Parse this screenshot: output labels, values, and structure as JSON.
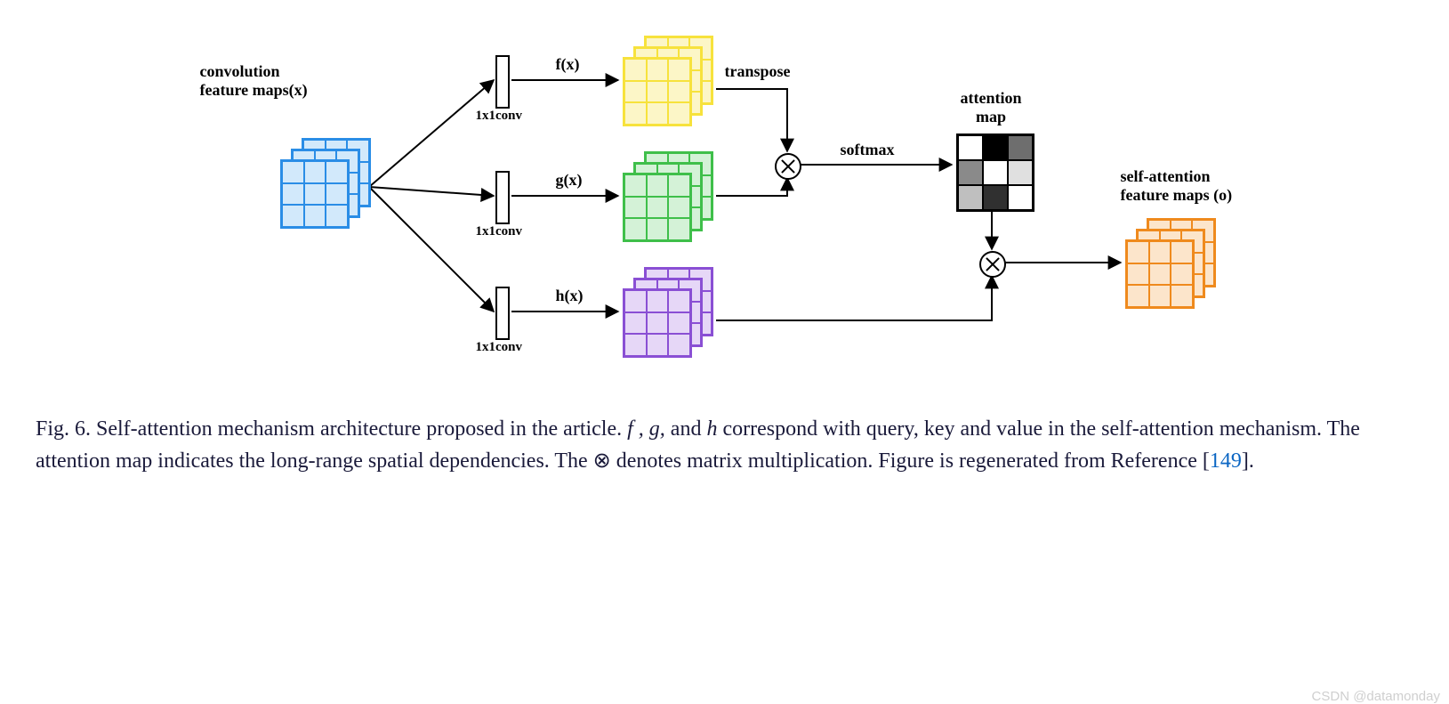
{
  "diagram": {
    "type": "flowchart",
    "input_label": "convolution\nfeature maps(x)",
    "branches": [
      {
        "name": "f",
        "func_label": "f(x)",
        "conv_label": "1x1conv",
        "stack_color": "#f7e23c",
        "stack_fill": "#fcf6c7",
        "extra_label": "transpose"
      },
      {
        "name": "g",
        "func_label": "g(x)",
        "conv_label": "1x1conv",
        "stack_color": "#3fbf4a",
        "stack_fill": "#d4f2d7",
        "extra_label": ""
      },
      {
        "name": "h",
        "func_label": "h(x)",
        "conv_label": "1x1conv",
        "stack_color": "#8a4fd4",
        "stack_fill": "#e6d7f7",
        "extra_label": ""
      }
    ],
    "softmax_label": "softmax",
    "attention_label": "attention\nmap",
    "output_label": "self-attention\nfeature maps (o)",
    "input_stack": {
      "color": "#2a8de6",
      "fill": "#d2e9fb"
    },
    "output_stack": {
      "color": "#ef8a1d",
      "fill": "#fce5cb"
    },
    "attention_cells": [
      [
        "#ffffff",
        "#000000",
        "#6e6e6e"
      ],
      [
        "#8a8a8a",
        "#ffffff",
        "#e0e0e0"
      ],
      [
        "#bfbfbf",
        "#303030",
        "#ffffff"
      ]
    ],
    "label_fontsize": 18,
    "small_label_fontsize": 15
  },
  "caption": {
    "prefix": "Fig. 6.  Self-attention mechanism architecture proposed in the article. ",
    "mid_italics": "f , g,",
    "mid2": " and ",
    "mid_h": "h",
    "rest": " correspond with query, key and value in the self-attention mechanism. The attention map indicates the long-range spatial dependencies. The ⊗ denotes matrix multiplication. Figure is regenerated from Reference [",
    "ref": "149",
    "end": "]."
  },
  "watermark": "CSDN @datamonday"
}
